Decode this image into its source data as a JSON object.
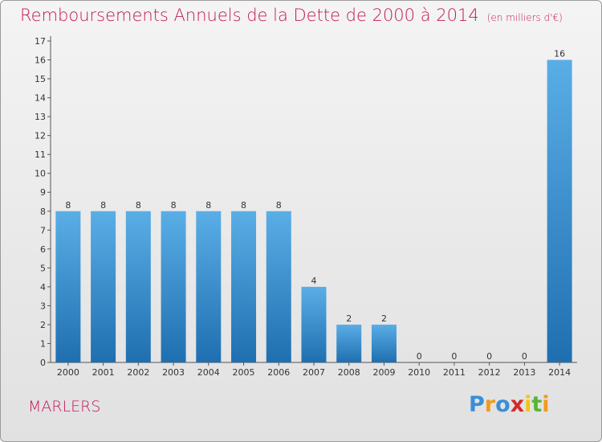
{
  "title": "Remboursements Annuels de la Dette de 2000 à 2014",
  "unit": "(en milliers d'€)",
  "commune": "MARLERS",
  "logo": {
    "letters": [
      "P",
      "r",
      "o",
      "x",
      "i",
      "t",
      "i"
    ],
    "colors": [
      "#3a8fd6",
      "#f29a1c",
      "#3a8fd6",
      "#d42a2a",
      "#f2c40f",
      "#59b536",
      "#f29a1c"
    ]
  },
  "colors": {
    "bar_top": "#5aaee6",
    "bar_bottom": "#1f6fb0",
    "title": "#c2185b"
  },
  "chart_data": {
    "type": "bar",
    "title": "Remboursements Annuels de la Dette de 2000 à 2014",
    "categories": [
      "2000",
      "2001",
      "2002",
      "2003",
      "2004",
      "2005",
      "2006",
      "2007",
      "2008",
      "2009",
      "2010",
      "2011",
      "2012",
      "2013",
      "2014"
    ],
    "values": [
      8,
      8,
      8,
      8,
      8,
      8,
      8,
      4,
      2,
      2,
      0,
      0,
      0,
      0,
      16
    ],
    "data_labels": [
      "8",
      "8",
      "8",
      "8",
      "8",
      "8",
      "8",
      "4",
      "2",
      "2",
      "0",
      "0",
      "0",
      "0",
      "16"
    ],
    "ylim": [
      0,
      17
    ],
    "yticks": [
      "0",
      "1",
      "2",
      "3",
      "4",
      "5",
      "6",
      "7",
      "8",
      "9",
      "10",
      "11",
      "12",
      "13",
      "14",
      "15",
      "16",
      "17"
    ],
    "grid": false,
    "legend": "none"
  }
}
